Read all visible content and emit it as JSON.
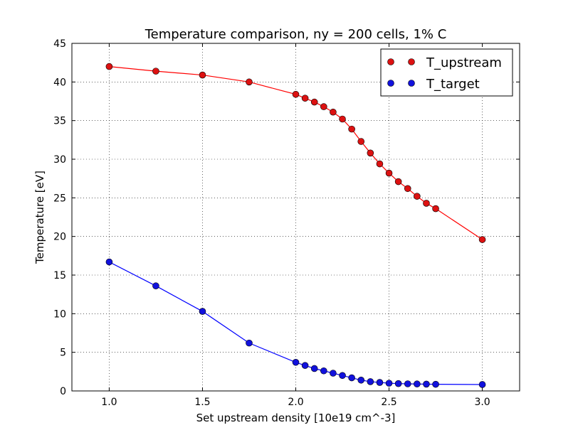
{
  "chart_data": {
    "type": "line",
    "title": "Temperature comparison, ny = 200 cells, 1% C",
    "xlabel": "Set upstream density [10e19 cm^-3]",
    "ylabel": "Temperature [eV]",
    "xlim": [
      0.8,
      3.2
    ],
    "ylim": [
      0,
      45
    ],
    "xticks": [
      1.0,
      1.5,
      2.0,
      2.5,
      3.0
    ],
    "xtick_labels": [
      "1.0",
      "1.5",
      "2.0",
      "2.5",
      "3.0"
    ],
    "yticks": [
      0,
      5,
      10,
      15,
      20,
      25,
      30,
      35,
      40,
      45
    ],
    "ytick_labels": [
      "0",
      "5",
      "10",
      "15",
      "20",
      "25",
      "30",
      "35",
      "40",
      "45"
    ],
    "grid": true,
    "legend_position": "top-right",
    "x": [
      1.0,
      1.25,
      1.5,
      1.75,
      2.0,
      2.05,
      2.1,
      2.15,
      2.2,
      2.25,
      2.3,
      2.35,
      2.4,
      2.45,
      2.5,
      2.55,
      2.6,
      2.65,
      2.7,
      2.75,
      3.0
    ],
    "series": [
      {
        "name": "T_upstream",
        "color": "#ff0000",
        "marker_color": "#dd1111",
        "values": [
          42.0,
          41.4,
          40.9,
          40.0,
          38.4,
          37.9,
          37.4,
          36.8,
          36.1,
          35.2,
          33.9,
          32.3,
          30.8,
          29.4,
          28.2,
          27.1,
          26.2,
          25.2,
          24.3,
          23.6,
          19.6
        ]
      },
      {
        "name": "T_target",
        "color": "#0000ff",
        "marker_color": "#1111dd",
        "values": [
          16.7,
          13.6,
          10.3,
          6.2,
          3.7,
          3.3,
          2.9,
          2.6,
          2.3,
          2.0,
          1.7,
          1.4,
          1.2,
          1.1,
          1.0,
          0.95,
          0.92,
          0.9,
          0.88,
          0.86,
          0.83
        ]
      }
    ]
  }
}
